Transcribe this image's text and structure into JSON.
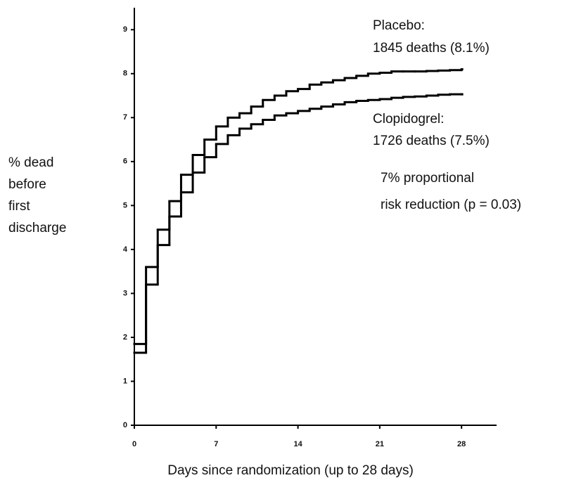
{
  "chart_data": {
    "type": "line",
    "drawstyle": "steps-post",
    "x": [
      0,
      1,
      2,
      3,
      4,
      5,
      6,
      7,
      8,
      9,
      10,
      11,
      12,
      13,
      14,
      15,
      16,
      17,
      18,
      19,
      20,
      21,
      22,
      23,
      24,
      25,
      26,
      27,
      28
    ],
    "series": [
      {
        "name": "Placebo",
        "color": "#000000",
        "values": [
          1.85,
          3.6,
          4.45,
          5.1,
          5.7,
          6.15,
          6.5,
          6.8,
          7.0,
          7.1,
          7.25,
          7.4,
          7.5,
          7.6,
          7.65,
          7.75,
          7.8,
          7.85,
          7.9,
          7.95,
          8.0,
          8.02,
          8.05,
          8.05,
          8.05,
          8.06,
          8.07,
          8.08,
          8.1
        ]
      },
      {
        "name": "Clopidogrel",
        "color": "#000000",
        "values": [
          1.65,
          3.2,
          4.1,
          4.75,
          5.3,
          5.75,
          6.1,
          6.4,
          6.6,
          6.75,
          6.85,
          6.95,
          7.05,
          7.1,
          7.15,
          7.2,
          7.25,
          7.3,
          7.35,
          7.38,
          7.4,
          7.42,
          7.45,
          7.47,
          7.48,
          7.5,
          7.52,
          7.53,
          7.53
        ]
      }
    ],
    "xlim": [
      0,
      31
    ],
    "ylim": [
      0,
      9.5
    ],
    "xticks": [
      0,
      7,
      14,
      21,
      28
    ],
    "yticks": [
      0,
      1,
      2,
      3,
      4,
      5,
      6,
      7,
      8,
      9
    ],
    "xlabel": "Days since randomization (up to 28 days)",
    "ylabel": [
      "% dead",
      "before",
      "first",
      "discharge"
    ],
    "annotations": [
      "Placebo:",
      "1845 deaths (8.1%)",
      "Clopidogrel:",
      "1726 deaths (7.5%)",
      "7% proportional",
      "risk reduction (p = 0.03)"
    ]
  }
}
